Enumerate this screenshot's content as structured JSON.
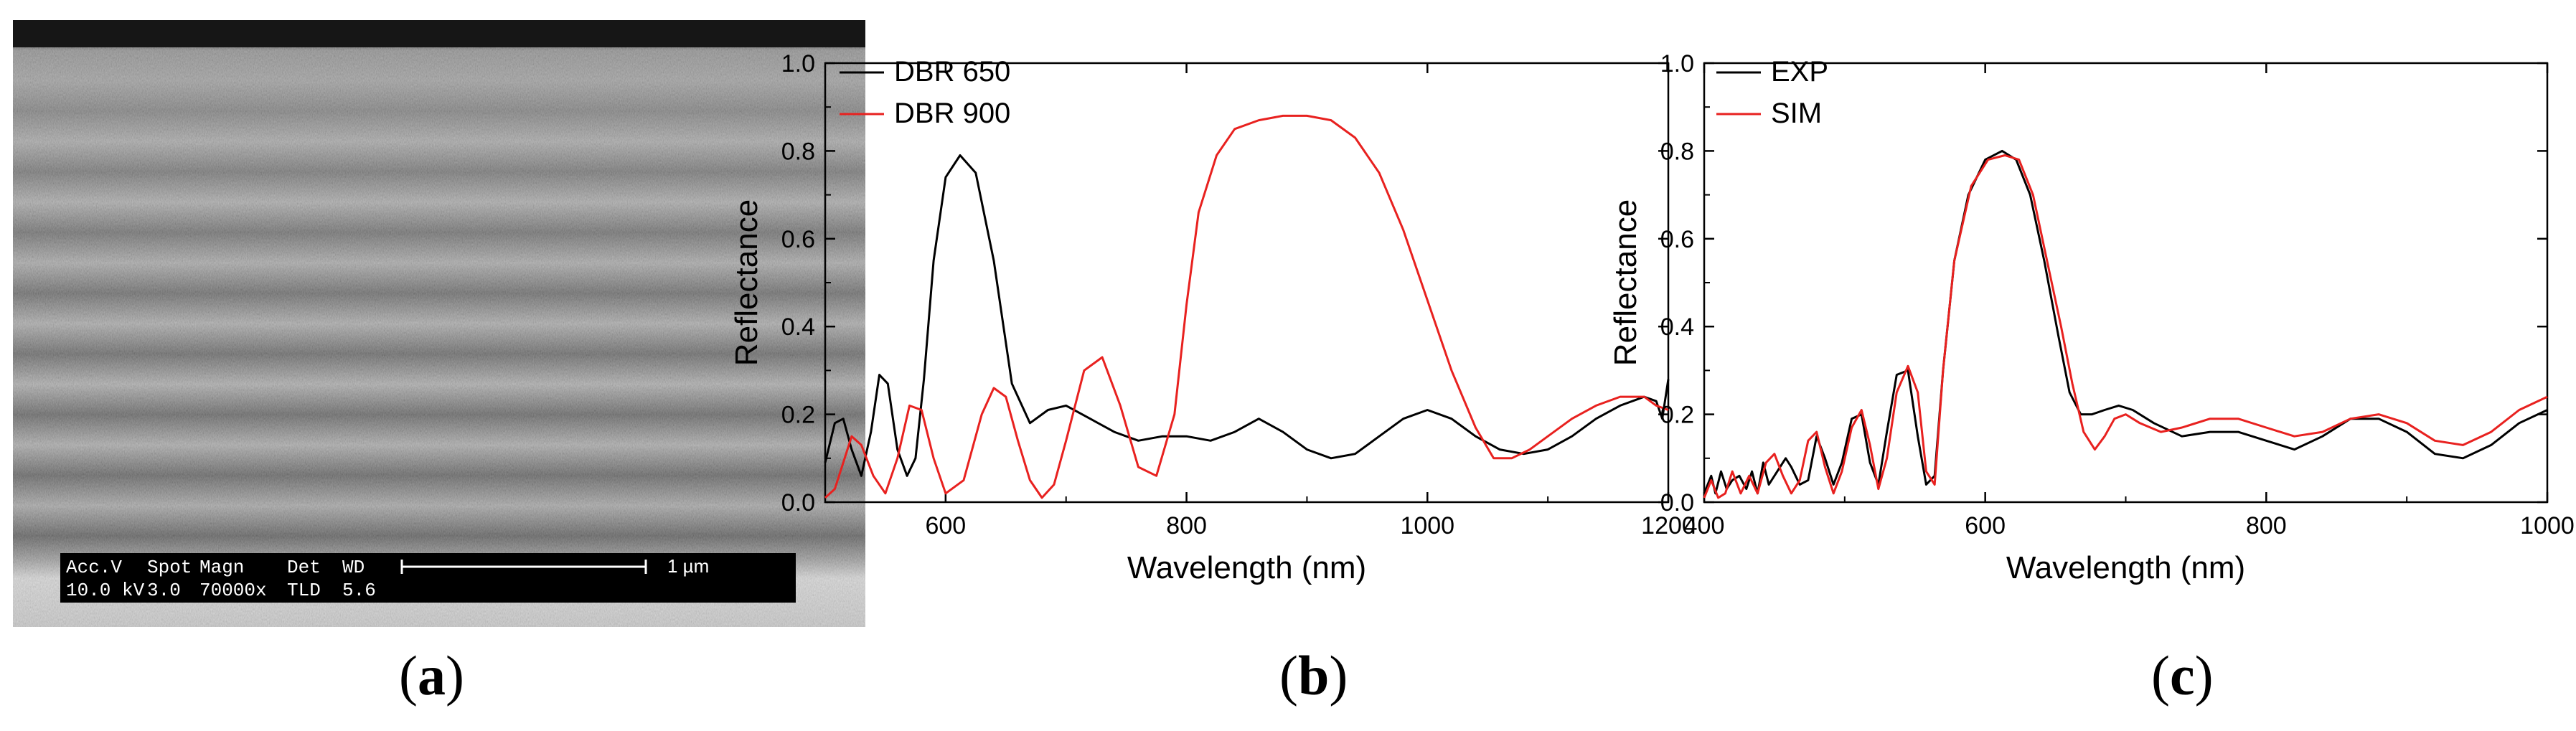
{
  "panels": {
    "a": {
      "caption_open": "(",
      "caption_letter": "a",
      "caption_close": ")",
      "sem_info": {
        "row1": [
          "Acc.V",
          "Spot",
          "Magn",
          "Det",
          "WD"
        ],
        "row2": [
          "10.0 kV",
          "3.0",
          "70000x",
          "TLD",
          "5.6"
        ],
        "scale_label": "1 µm"
      }
    },
    "b": {
      "caption_open": "(",
      "caption_letter": "b",
      "caption_close": ")"
    },
    "c": {
      "caption_open": "(",
      "caption_letter": "c",
      "caption_close": ")"
    }
  },
  "chart_data": [
    {
      "id": "b",
      "type": "line",
      "xlabel": "Wavelength (nm)",
      "ylabel": "Reflectance",
      "xlim": [
        500,
        1200
      ],
      "ylim": [
        0.0,
        1.0
      ],
      "xticks": [
        600,
        800,
        1000,
        1200
      ],
      "yticks": [
        0.0,
        0.2,
        0.4,
        0.6,
        0.8,
        1.0
      ],
      "xtick_labels": [
        "600",
        "800",
        "1000",
        "1200"
      ],
      "ytick_labels": [
        "0.0",
        "0.2",
        "0.4",
        "0.6",
        "0.8",
        "1.0"
      ],
      "legend_position": "top-left",
      "series": [
        {
          "name": "DBR 650",
          "color": "#000000",
          "x": [
            500,
            508,
            515,
            522,
            530,
            538,
            545,
            552,
            560,
            568,
            575,
            582,
            590,
            600,
            612,
            625,
            640,
            655,
            670,
            685,
            700,
            720,
            740,
            760,
            780,
            800,
            820,
            840,
            860,
            880,
            900,
            920,
            940,
            960,
            980,
            1000,
            1020,
            1040,
            1060,
            1080,
            1100,
            1120,
            1140,
            1160,
            1180,
            1190,
            1195,
            1200
          ],
          "y": [
            0.09,
            0.18,
            0.19,
            0.12,
            0.06,
            0.16,
            0.29,
            0.27,
            0.12,
            0.06,
            0.1,
            0.28,
            0.55,
            0.74,
            0.79,
            0.75,
            0.55,
            0.27,
            0.18,
            0.21,
            0.22,
            0.19,
            0.16,
            0.14,
            0.15,
            0.15,
            0.14,
            0.16,
            0.19,
            0.16,
            0.12,
            0.1,
            0.11,
            0.15,
            0.19,
            0.21,
            0.19,
            0.15,
            0.12,
            0.11,
            0.12,
            0.15,
            0.19,
            0.22,
            0.24,
            0.23,
            0.19,
            0.28
          ]
        },
        {
          "name": "DBR 900",
          "color": "#e8211f",
          "x": [
            500,
            508,
            515,
            522,
            530,
            540,
            550,
            560,
            570,
            580,
            590,
            600,
            615,
            630,
            640,
            650,
            660,
            670,
            680,
            690,
            700,
            715,
            730,
            745,
            760,
            775,
            790,
            800,
            810,
            825,
            840,
            860,
            880,
            900,
            920,
            940,
            960,
            980,
            1000,
            1020,
            1040,
            1055,
            1070,
            1085,
            1100,
            1120,
            1140,
            1160,
            1180,
            1190,
            1200
          ],
          "y": [
            0.01,
            0.03,
            0.09,
            0.15,
            0.13,
            0.06,
            0.02,
            0.1,
            0.22,
            0.21,
            0.1,
            0.02,
            0.05,
            0.2,
            0.26,
            0.24,
            0.14,
            0.05,
            0.01,
            0.04,
            0.14,
            0.3,
            0.33,
            0.22,
            0.08,
            0.06,
            0.2,
            0.45,
            0.66,
            0.79,
            0.85,
            0.87,
            0.88,
            0.88,
            0.87,
            0.83,
            0.75,
            0.62,
            0.46,
            0.3,
            0.17,
            0.1,
            0.1,
            0.12,
            0.15,
            0.19,
            0.22,
            0.24,
            0.24,
            0.22,
            0.21
          ]
        }
      ]
    },
    {
      "id": "c",
      "type": "line",
      "xlabel": "Wavelength (nm)",
      "ylabel": "Reflectance",
      "xlim": [
        400,
        1000
      ],
      "ylim": [
        0.0,
        1.0
      ],
      "xticks": [
        400,
        600,
        800,
        1000
      ],
      "yticks": [
        0.0,
        0.2,
        0.4,
        0.6,
        0.8,
        1.0
      ],
      "xtick_labels": [
        "400",
        "600",
        "800",
        "1000"
      ],
      "ytick_labels": [
        "0.0",
        "0.2",
        "0.4",
        "0.6",
        "0.8",
        "1.0"
      ],
      "legend_position": "top-left",
      "series": [
        {
          "name": "EXP",
          "color": "#000000",
          "x": [
            400,
            405,
            408,
            412,
            416,
            420,
            425,
            430,
            434,
            438,
            442,
            446,
            452,
            458,
            462,
            468,
            474,
            480,
            486,
            492,
            498,
            505,
            512,
            518,
            524,
            530,
            537,
            545,
            552,
            558,
            564,
            570,
            578,
            588,
            600,
            612,
            622,
            632,
            642,
            652,
            660,
            668,
            676,
            685,
            695,
            705,
            720,
            740,
            760,
            780,
            800,
            820,
            840,
            860,
            880,
            900,
            920,
            940,
            960,
            980,
            1000
          ],
          "y": [
            0.02,
            0.06,
            0.02,
            0.07,
            0.03,
            0.05,
            0.06,
            0.03,
            0.07,
            0.02,
            0.09,
            0.04,
            0.07,
            0.1,
            0.08,
            0.04,
            0.05,
            0.15,
            0.1,
            0.04,
            0.09,
            0.19,
            0.2,
            0.09,
            0.04,
            0.16,
            0.29,
            0.3,
            0.15,
            0.04,
            0.06,
            0.3,
            0.55,
            0.7,
            0.78,
            0.8,
            0.78,
            0.7,
            0.55,
            0.38,
            0.25,
            0.2,
            0.2,
            0.21,
            0.22,
            0.21,
            0.18,
            0.15,
            0.16,
            0.16,
            0.14,
            0.12,
            0.15,
            0.19,
            0.19,
            0.16,
            0.11,
            0.1,
            0.13,
            0.18,
            0.21
          ]
        },
        {
          "name": "SIM",
          "color": "#e8211f",
          "x": [
            400,
            405,
            410,
            415,
            420,
            426,
            432,
            438,
            444,
            450,
            456,
            462,
            468,
            474,
            480,
            486,
            492,
            498,
            505,
            512,
            518,
            524,
            530,
            537,
            545,
            552,
            558,
            564,
            570,
            578,
            590,
            602,
            614,
            624,
            634,
            644,
            654,
            662,
            670,
            678,
            685,
            692,
            700,
            710,
            725,
            740,
            760,
            780,
            800,
            820,
            840,
            860,
            880,
            900,
            920,
            940,
            960,
            980,
            1000
          ],
          "y": [
            0.01,
            0.05,
            0.01,
            0.02,
            0.07,
            0.02,
            0.06,
            0.02,
            0.09,
            0.11,
            0.06,
            0.02,
            0.05,
            0.14,
            0.16,
            0.08,
            0.02,
            0.07,
            0.17,
            0.21,
            0.13,
            0.03,
            0.1,
            0.25,
            0.31,
            0.25,
            0.07,
            0.04,
            0.3,
            0.55,
            0.72,
            0.78,
            0.79,
            0.78,
            0.7,
            0.55,
            0.4,
            0.27,
            0.16,
            0.12,
            0.15,
            0.19,
            0.2,
            0.18,
            0.16,
            0.17,
            0.19,
            0.19,
            0.17,
            0.15,
            0.16,
            0.19,
            0.2,
            0.18,
            0.14,
            0.13,
            0.16,
            0.21,
            0.24
          ]
        }
      ]
    }
  ]
}
